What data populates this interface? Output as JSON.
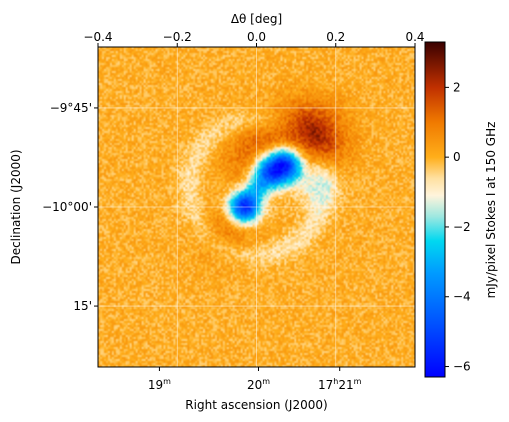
{
  "chart_data": {
    "type": "heatmap",
    "top_axis": {
      "label": "Δθ [deg]",
      "ticks": [
        -0.4,
        -0.2,
        0.0,
        0.2,
        0.4
      ],
      "tick_labels": [
        "−0.4",
        "−0.2",
        "0.0",
        "0.2",
        "0.4"
      ],
      "range": [
        -0.4,
        0.4
      ]
    },
    "x_axis": {
      "label": "Right ascension (J2000)",
      "tick_labels": [
        {
          "h": "17",
          "hu": "h",
          "m": "21",
          "mu": "m",
          "dtheta": 0.21
        },
        {
          "m": "20",
          "mu": "m",
          "dtheta": 0.005
        },
        {
          "m": "19",
          "mu": "m",
          "dtheta": -0.245
        }
      ]
    },
    "y_axis": {
      "label": "Declination (J2000)",
      "tick_labels": [
        {
          "text": "−9°45'",
          "dtheta": 0.25
        },
        {
          "text": "−10°00'",
          "dtheta": 0.0
        },
        {
          "text": "15'",
          "dtheta": -0.25
        }
      ]
    },
    "grid": true,
    "colorbar": {
      "label": "mJy/pixel Stokes I at 150 GHz",
      "range": [
        -6.3,
        3.3
      ],
      "ticks": [
        2,
        0,
        -2,
        -4,
        -6
      ],
      "tick_labels": [
        "2",
        "0",
        "−2",
        "−4",
        "−6"
      ],
      "colormap": [
        {
          "v": -6.3,
          "c": "#0000ff"
        },
        {
          "v": -4.8,
          "c": "#0050ff"
        },
        {
          "v": -3.3,
          "c": "#009cff"
        },
        {
          "v": -2.4,
          "c": "#00d8f0"
        },
        {
          "v": -1.7,
          "c": "#9ee8e0"
        },
        {
          "v": -1.1,
          "c": "#fff4dc"
        },
        {
          "v": -0.6,
          "c": "#ffe0a0"
        },
        {
          "v": 0.0,
          "c": "#ffae1a"
        },
        {
          "v": 1.0,
          "c": "#f07a00"
        },
        {
          "v": 2.0,
          "c": "#c03000"
        },
        {
          "v": 3.3,
          "c": "#3a0000"
        }
      ]
    },
    "background_level": 0.0,
    "features": [
      {
        "kind": "negative",
        "x": 0.075,
        "y": 0.11,
        "amp": -6.0,
        "sigma": 0.032
      },
      {
        "kind": "negative",
        "x": 0.03,
        "y": 0.085,
        "amp": -4.5,
        "sigma": 0.03
      },
      {
        "kind": "negative",
        "x": -0.03,
        "y": 0.0,
        "amp": -6.0,
        "sigma": 0.028
      },
      {
        "kind": "negative",
        "x": 0.0,
        "y": 0.045,
        "amp": -1.5,
        "sigma": 0.02
      },
      {
        "kind": "positive",
        "x": 0.13,
        "y": 0.17,
        "amp": 2.8,
        "sigma": 0.06
      },
      {
        "kind": "positive",
        "x": 0.0,
        "y": 0.13,
        "amp": 1.2,
        "sigma": 0.06
      },
      {
        "kind": "positive",
        "x": -0.07,
        "y": -0.06,
        "amp": 1.0,
        "sigma": 0.05
      },
      {
        "kind": "negative-halo",
        "x": 0.15,
        "y": 0.06,
        "amp": -1.3,
        "sigma": 0.04
      }
    ]
  }
}
